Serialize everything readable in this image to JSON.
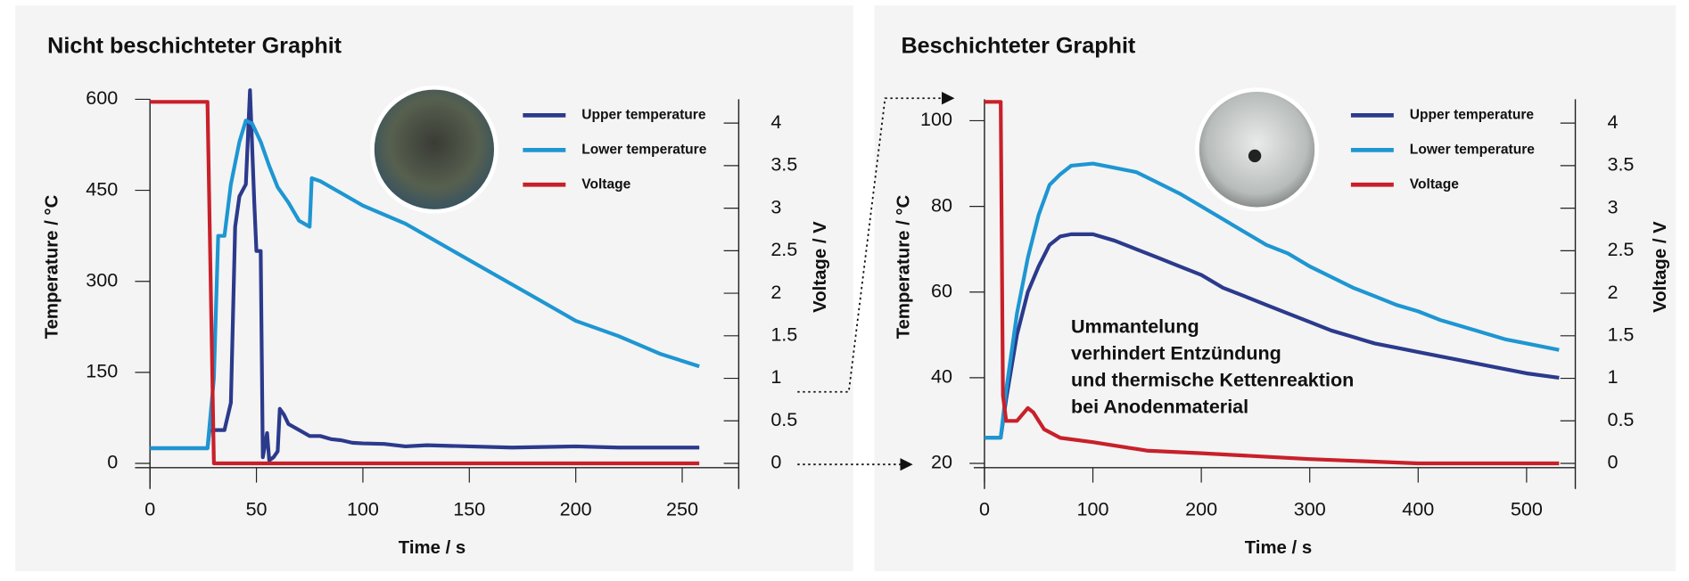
{
  "chart_data": [
    {
      "type": "line",
      "title": "Nicht beschichteter Graphit",
      "x_label": "Time / s",
      "y_label": "Temperature / °C",
      "y2_label": "Voltage / V",
      "xlim": [
        0,
        265
      ],
      "xticks": [
        0,
        50,
        100,
        150,
        200,
        250
      ],
      "ylim": [
        -7,
        600
      ],
      "yticks": [
        0,
        150,
        300,
        450,
        600
      ],
      "y2lim": [
        -0.05,
        4.28
      ],
      "y2ticks": [
        0,
        0.5,
        1,
        1.5,
        2,
        2.5,
        3,
        3.5,
        4
      ],
      "series": [
        {
          "name": "Upper temperature",
          "color": "#2b3a8c",
          "x": [
            0,
            27,
            28,
            35,
            38,
            40,
            42,
            45,
            47,
            49,
            50,
            52,
            53,
            55,
            56,
            58,
            60,
            61,
            63,
            65,
            70,
            75,
            80,
            85,
            90,
            95,
            100,
            110,
            120,
            130,
            150,
            170,
            200,
            220,
            258
          ],
          "values": [
            25,
            25,
            55,
            55,
            100,
            390,
            440,
            460,
            615,
            430,
            350,
            350,
            10,
            50,
            5,
            10,
            20,
            90,
            80,
            65,
            55,
            45,
            45,
            40,
            38,
            34,
            33,
            32,
            28,
            30,
            28,
            26,
            28,
            26,
            26
          ]
        },
        {
          "name": "Lower temperature",
          "color": "#1e96d2",
          "x": [
            0,
            27,
            30,
            32,
            35,
            38,
            42,
            45,
            48,
            52,
            56,
            60,
            65,
            70,
            75,
            76,
            80,
            90,
            100,
            120,
            140,
            160,
            180,
            200,
            220,
            240,
            258
          ],
          "values": [
            25,
            25,
            140,
            375,
            375,
            460,
            530,
            565,
            560,
            530,
            490,
            455,
            430,
            400,
            390,
            470,
            465,
            445,
            425,
            395,
            355,
            315,
            275,
            235,
            210,
            180,
            160
          ]
        },
        {
          "name": "Voltage",
          "color": "#c8202a",
          "axis": "y2",
          "x": [
            0,
            27,
            30,
            258
          ],
          "values": [
            4.25,
            4.25,
            0,
            0
          ]
        }
      ]
    },
    {
      "type": "line",
      "title": "Beschichteter Graphit",
      "x_label": "Time / s",
      "y_label": "Temperature / °C",
      "y2_label": "Voltage / V",
      "annotation": [
        "Ummantelung",
        "verhindert Entzündung",
        "und thermische Kettenreaktion",
        "bei Anodenmaterial"
      ],
      "xlim": [
        0,
        542
      ],
      "xticks": [
        0,
        100,
        200,
        300,
        400,
        500
      ],
      "ylim": [
        19,
        105
      ],
      "yticks": [
        20,
        40,
        60,
        80,
        100
      ],
      "y2lim": [
        -0.05,
        4.28
      ],
      "y2ticks": [
        0,
        0.5,
        1,
        1.5,
        2,
        2.5,
        3,
        3.5,
        4
      ],
      "series": [
        {
          "name": "Upper temperature",
          "color": "#2b3a8c",
          "x": [
            0,
            15,
            20,
            30,
            40,
            50,
            60,
            70,
            80,
            100,
            120,
            140,
            160,
            180,
            200,
            220,
            240,
            260,
            280,
            300,
            320,
            340,
            360,
            380,
            400,
            420,
            440,
            460,
            480,
            500,
            530
          ],
          "values": [
            26,
            26,
            35,
            50,
            60,
            66,
            71,
            73,
            73.5,
            73.5,
            72,
            70,
            68,
            66,
            64,
            61,
            59,
            57,
            55,
            53,
            51,
            49.5,
            48,
            47,
            46,
            45,
            44,
            43,
            42,
            41,
            40
          ]
        },
        {
          "name": "Lower temperature",
          "color": "#1e96d2",
          "x": [
            0,
            15,
            20,
            30,
            40,
            50,
            60,
            70,
            80,
            100,
            120,
            140,
            160,
            180,
            200,
            220,
            240,
            260,
            280,
            300,
            320,
            340,
            360,
            380,
            400,
            420,
            440,
            460,
            480,
            500,
            530
          ],
          "values": [
            26,
            26,
            37,
            55,
            68,
            78,
            85,
            87.5,
            89.5,
            90,
            89,
            88,
            85.5,
            83,
            80,
            77,
            74,
            71,
            69,
            66,
            63.5,
            61,
            59,
            57,
            55.5,
            53.5,
            52,
            50.5,
            49,
            48,
            46.5
          ]
        },
        {
          "name": "Voltage",
          "color": "#c8202a",
          "axis": "y2",
          "x": [
            0,
            15,
            17,
            20,
            30,
            40,
            45,
            55,
            70,
            100,
            150,
            200,
            300,
            400,
            530
          ],
          "values": [
            4.25,
            4.25,
            0.8,
            0.5,
            0.5,
            0.65,
            0.6,
            0.4,
            0.3,
            0.25,
            0.15,
            0.12,
            0.05,
            0,
            0
          ]
        }
      ]
    }
  ]
}
